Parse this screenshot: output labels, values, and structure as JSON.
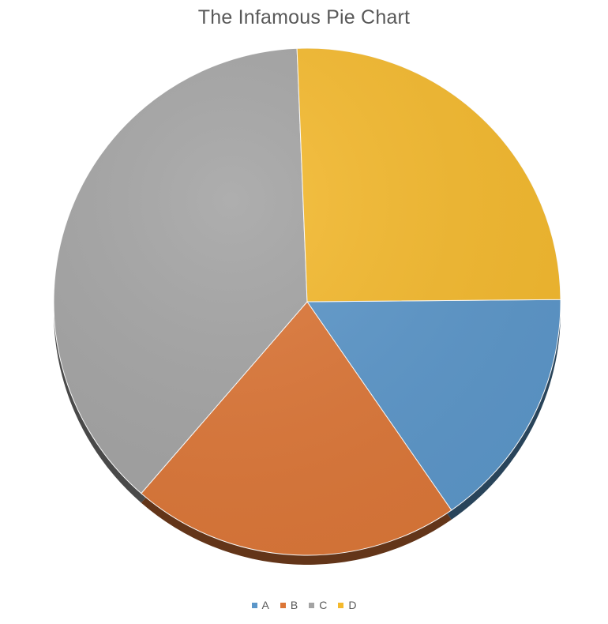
{
  "chart_data": {
    "type": "pie",
    "title": "The Infamous Pie Chart",
    "categories": [
      "A",
      "B",
      "C",
      "D"
    ],
    "values": [
      15.5,
      21,
      38,
      25.5
    ],
    "colors": [
      "#5b96c9",
      "#dc7637",
      "#a3a3a3",
      "#f4b92d"
    ],
    "legend": "bottom"
  }
}
